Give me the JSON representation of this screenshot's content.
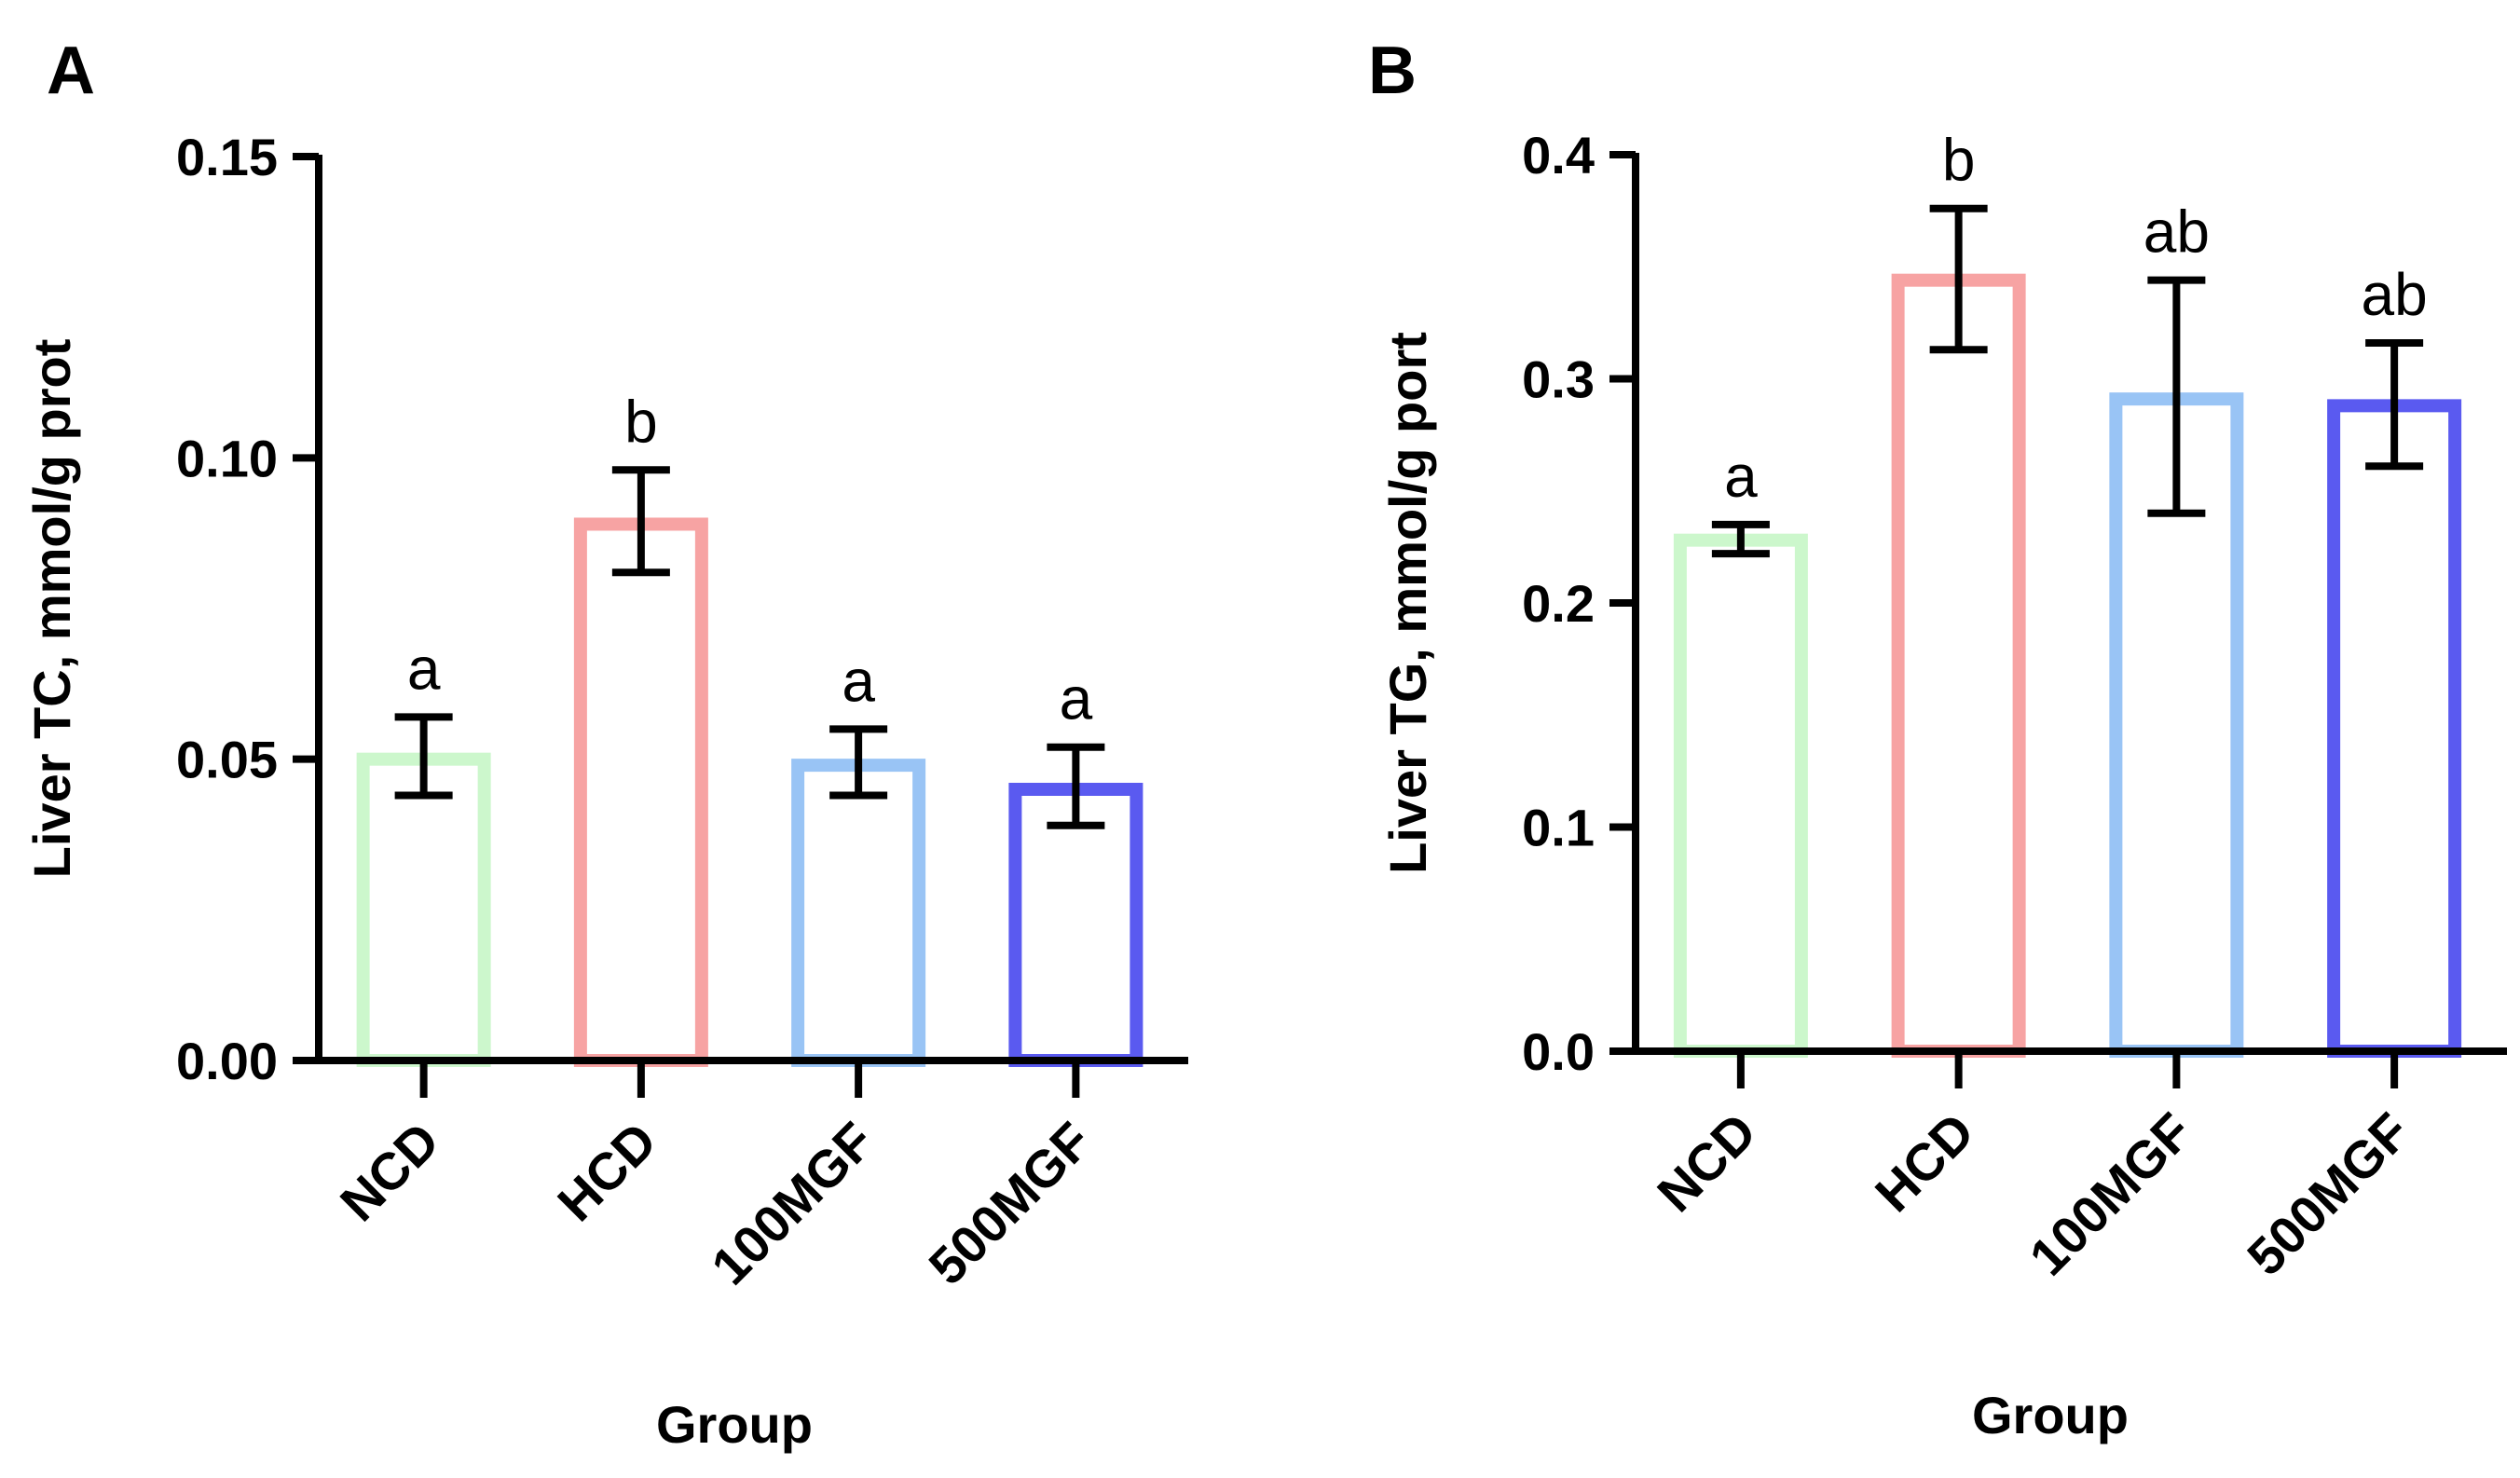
{
  "chart_data": [
    {
      "type": "bar",
      "panel": "A",
      "xlabel": "Group",
      "ylabel": "Liver TC, mmol/g prot",
      "ylim": [
        0,
        0.15
      ],
      "yticks": [
        0.0,
        0.05,
        0.1,
        0.15
      ],
      "ytick_labels": [
        "0.00",
        "0.05",
        "0.10",
        "0.15"
      ],
      "categories": [
        "NCD",
        "HCD",
        "100MGF",
        "500MGF"
      ],
      "values": [
        0.05,
        0.089,
        0.049,
        0.045
      ],
      "error_low": [
        0.044,
        0.081,
        0.044,
        0.039
      ],
      "error_high": [
        0.057,
        0.098,
        0.055,
        0.052
      ],
      "significance": [
        "a",
        "b",
        "a",
        "a"
      ],
      "colors": [
        "#ccf7cc",
        "#f7a3a3",
        "#99c4f5",
        "#5a5af0"
      ]
    },
    {
      "type": "bar",
      "panel": "B",
      "xlabel": "Group",
      "ylabel": "Liver TG, mmol/g port",
      "ylim": [
        0,
        0.4
      ],
      "yticks": [
        0.0,
        0.1,
        0.2,
        0.3,
        0.4
      ],
      "ytick_labels": [
        "0.0",
        "0.1",
        "0.2",
        "0.3",
        "0.4"
      ],
      "categories": [
        "NCD",
        "HCD",
        "100MGF",
        "500MGF"
      ],
      "values": [
        0.228,
        0.344,
        0.291,
        0.288
      ],
      "error_low": [
        0.222,
        0.313,
        0.24,
        0.261
      ],
      "error_high": [
        0.235,
        0.376,
        0.344,
        0.316
      ],
      "significance": [
        "a",
        "b",
        "ab",
        "ab"
      ],
      "colors": [
        "#ccf7cc",
        "#f7a3a3",
        "#99c4f5",
        "#5a5af0"
      ]
    }
  ]
}
